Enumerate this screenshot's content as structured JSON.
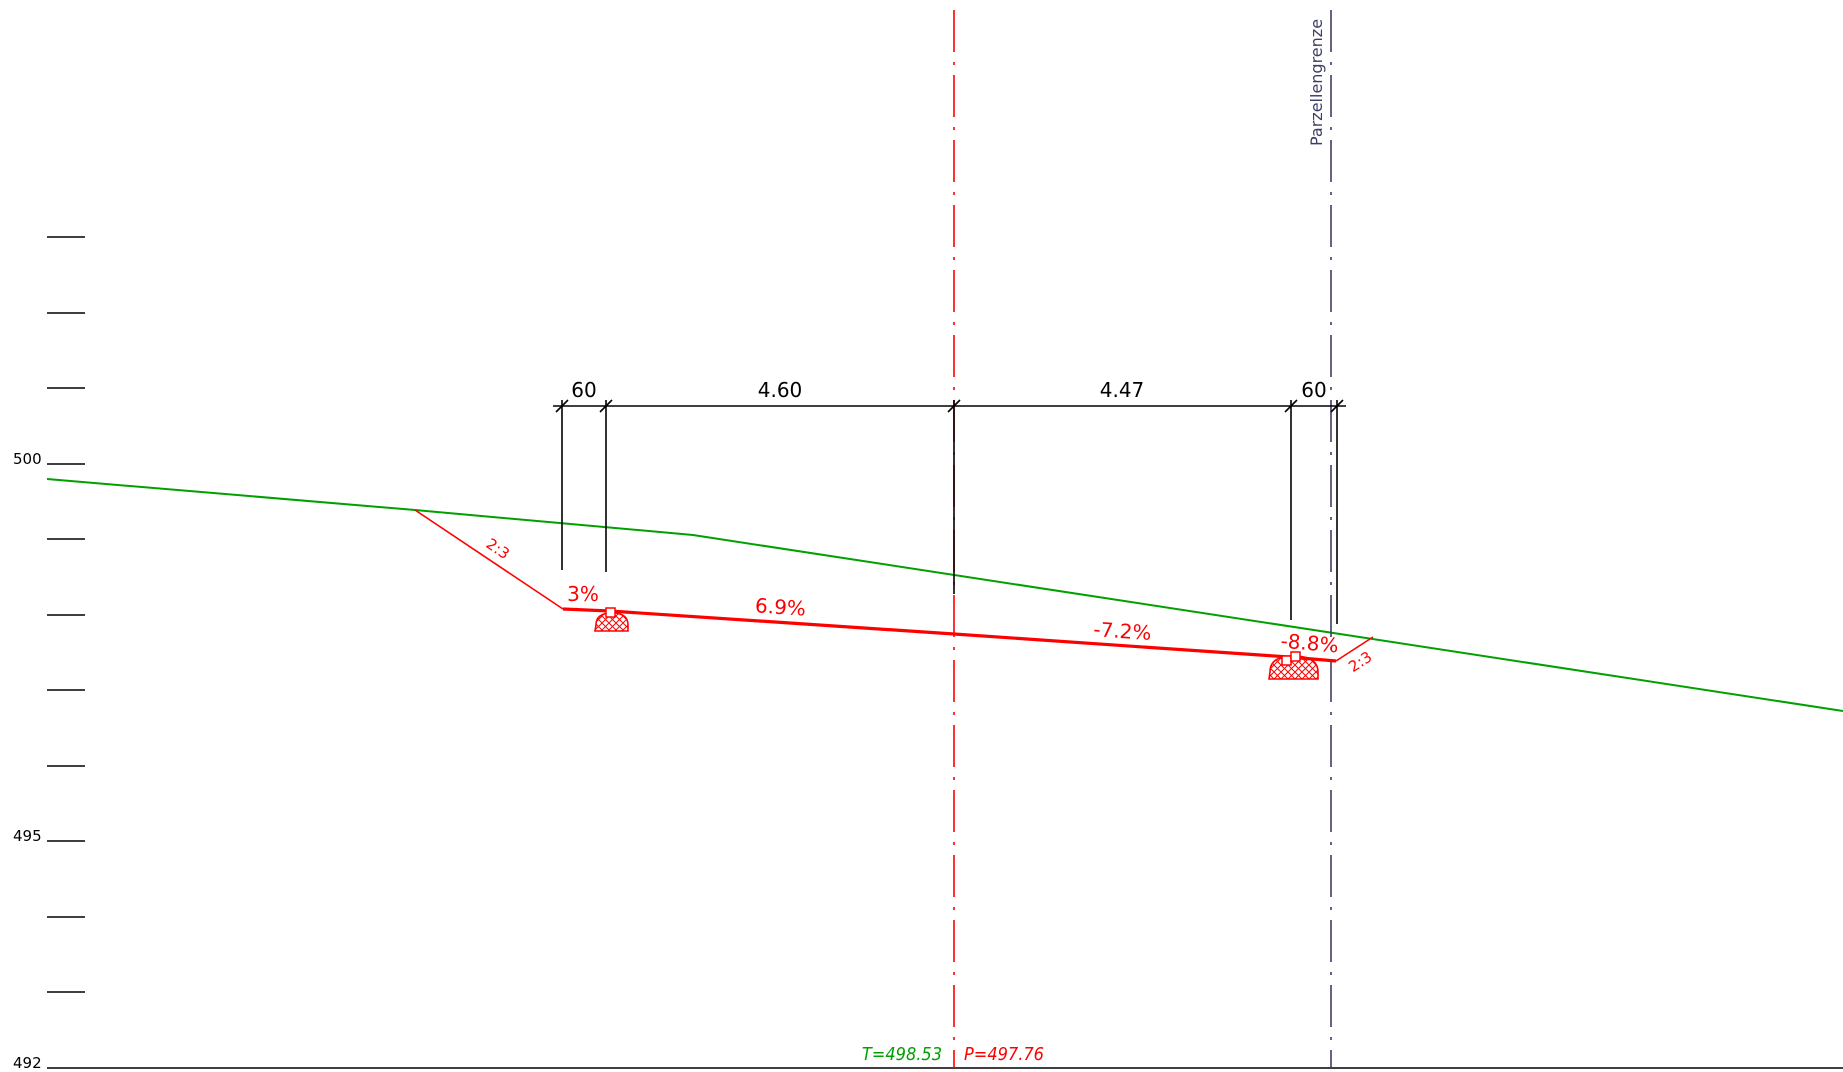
{
  "drawing": {
    "elevation_scale": {
      "labels": [
        {
          "key": "e500",
          "text": "500"
        },
        {
          "key": "e495",
          "text": "495"
        },
        {
          "key": "e492",
          "text": "492"
        }
      ]
    },
    "dimensions": {
      "left_ditch": "60",
      "left_lane": "4.60",
      "right_lane": "4.47",
      "right_ditch": "60"
    },
    "slopes": {
      "left_ditch": "3%",
      "left_lane": "6.9%",
      "right_lane": "-7.2%",
      "right_ditch": "-8.8%",
      "embankment_left": "2:3",
      "embankment_right": "2:3"
    },
    "boundary_label": "Parzellengrenze",
    "heights": {
      "terrain": "T=498.53",
      "project": "P=497.76"
    },
    "colors": {
      "terrain": "#00a000",
      "project": "#ff0000",
      "axis": "#ff0000",
      "boundary": "#3d3d66",
      "dimension": "#000000"
    }
  }
}
